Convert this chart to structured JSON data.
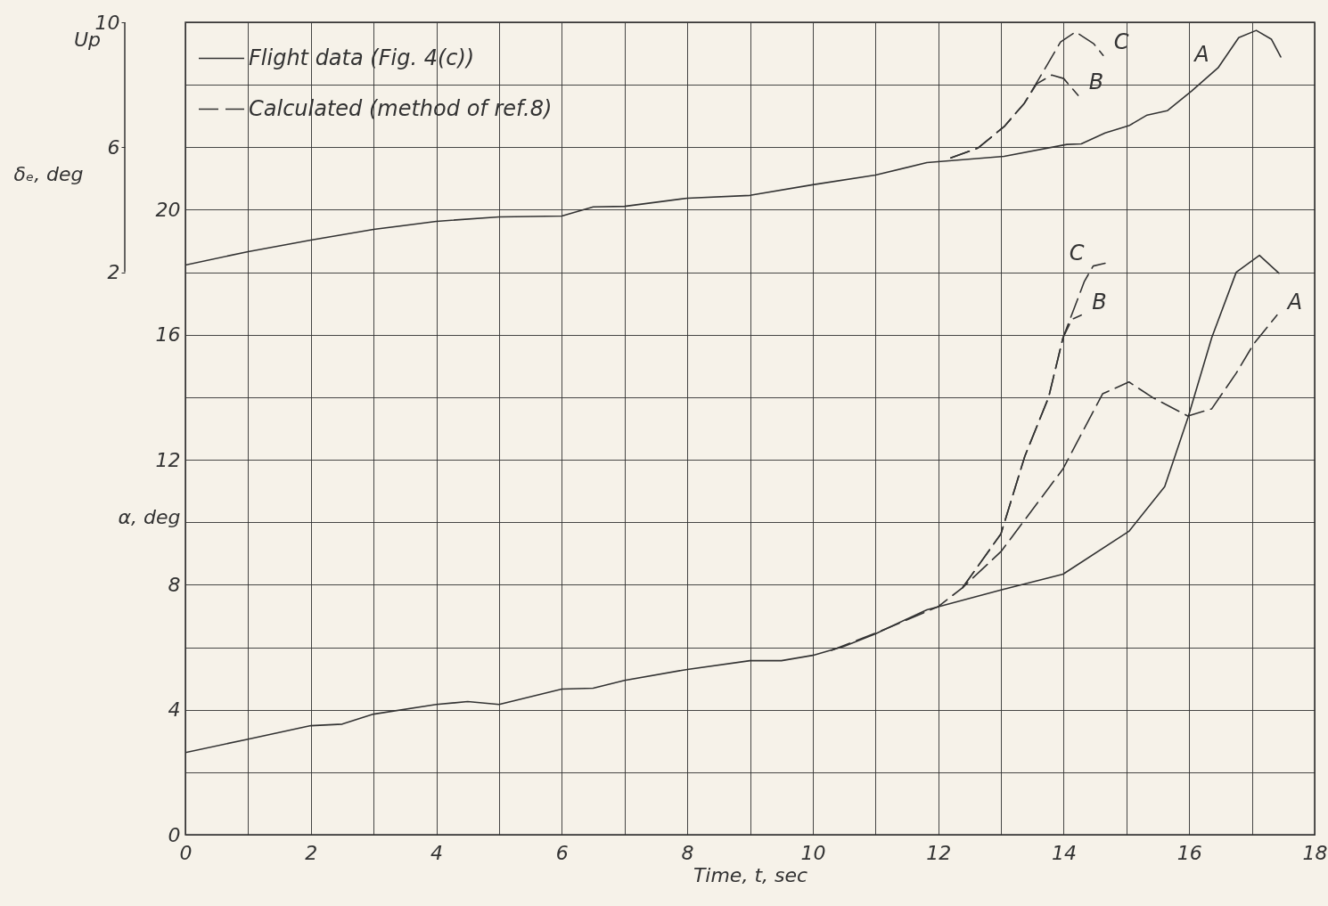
{
  "chart_data": {
    "type": "line",
    "xlabel": "Time, t, sec",
    "ylabel": "α, deg",
    "y2label": "δₑ, deg",
    "xlim": [
      0,
      18
    ],
    "xticks": [
      0,
      {
        "value": 1,
        "label": null
      },
      2,
      {
        "value": 3,
        "label": null
      },
      4,
      {
        "value": 5,
        "label": null
      },
      6,
      {
        "value": 7,
        "label": null
      },
      8,
      {
        "value": 9,
        "label": null
      },
      10,
      {
        "value": 11,
        "label": null
      },
      12,
      {
        "value": 13,
        "label": null
      },
      14,
      {
        "value": 15,
        "label": null
      },
      16,
      {
        "value": 17,
        "label": null
      },
      18
    ],
    "ylim": [
      0,
      26
    ],
    "yticks": [
      0,
      {
        "value": 2,
        "label": null
      },
      4,
      {
        "value": 6,
        "label": null
      },
      8,
      {
        "value": 10,
        "label": null
      },
      12,
      {
        "value": 14,
        "label": null
      },
      16,
      {
        "value": 18,
        "label": null
      },
      20,
      {
        "value": 22,
        "label": null
      },
      {
        "value": 24,
        "label": null
      },
      {
        "value": 26,
        "label": null
      }
    ],
    "y2lim": [
      -16,
      10
    ],
    "y2ticks": [
      2,
      6,
      10
    ],
    "grid": true,
    "legend": "top left",
    "series": [
      {
        "name": "Flight data (Fig. 4(c))",
        "color": "#333333",
        "line_style": "solid",
        "axis": "y2",
        "x": [
          0,
          1,
          2,
          3,
          4,
          5,
          6,
          6.5,
          7,
          8,
          9,
          10,
          11,
          11.82,
          13.05,
          14.05,
          14.28,
          14.66,
          15.04,
          15.33,
          15.65,
          16.04,
          16.46,
          16.79,
          17.07,
          17.31,
          17.46
        ],
        "values": [
          2.23,
          2.66,
          3.03,
          3.37,
          3.63,
          3.77,
          3.8,
          4.09,
          4.11,
          4.37,
          4.46,
          4.8,
          5.11,
          5.51,
          5.71,
          6.09,
          6.11,
          6.46,
          6.69,
          7.03,
          7.17,
          7.8,
          8.54,
          9.51,
          9.74,
          9.46,
          8.89
        ]
      },
      {
        "name": "Calculated (method of ref.8)",
        "color": "#333333",
        "line_style": "dashed",
        "axis": "y2",
        "x": [
          12.2,
          12.63,
          13.05,
          13.37,
          13.6,
          13.95,
          14.19,
          14.48,
          14.63
        ],
        "values": [
          5.66,
          5.97,
          6.66,
          7.4,
          8.17,
          9.37,
          9.69,
          9.31,
          8.94
        ]
      },
      {
        "color": "#333333",
        "line_style": "dashed",
        "axis": "y2",
        "x": [
          12.2,
          12.63,
          13.05,
          13.37,
          13.57,
          13.81,
          14.0,
          14.23
        ],
        "values": [
          5.66,
          5.97,
          6.66,
          7.4,
          8.03,
          8.31,
          8.2,
          7.66
        ]
      },
      {
        "color": "#333333",
        "line_style": "solid",
        "x": [
          0,
          1,
          2,
          2.5,
          3,
          4,
          4.5,
          5,
          6,
          6.5,
          7,
          8,
          9,
          9.5,
          10,
          10.5,
          11,
          11.82,
          13.0,
          13.99,
          15.04,
          15.61,
          15.98,
          16.36,
          16.75,
          17.12,
          17.43
        ],
        "values": [
          2.63,
          3.06,
          3.49,
          3.54,
          3.86,
          4.17,
          4.26,
          4.17,
          4.66,
          4.69,
          4.94,
          5.29,
          5.57,
          5.57,
          5.74,
          6.03,
          6.43,
          7.2,
          7.83,
          8.34,
          9.71,
          11.14,
          13.34,
          15.91,
          18.0,
          18.54,
          17.97
        ]
      },
      {
        "color": "#333333",
        "line_style": "dashed",
        "x": [
          10.3,
          11,
          12,
          12.39,
          13.0,
          13.99,
          14.62,
          15.04,
          15.41,
          15.98,
          16.36,
          16.75,
          17.03,
          17.4
        ],
        "values": [
          5.9,
          6.45,
          7.3,
          7.91,
          9.06,
          11.71,
          14.11,
          14.49,
          14.0,
          13.4,
          13.63,
          14.77,
          15.71,
          16.63
        ]
      },
      {
        "color": "#333333",
        "line_style": "dashed",
        "x": [
          12.39,
          13.0,
          13.38,
          13.76,
          13.99,
          14.13,
          14.28
        ],
        "values": [
          7.91,
          9.63,
          12.11,
          14.0,
          15.91,
          16.49,
          16.63
        ]
      },
      {
        "color": "#333333",
        "line_style": "dashed",
        "x": [
          12.39,
          13.0,
          13.38,
          13.76,
          13.99,
          14.33,
          14.47,
          14.66
        ],
        "values": [
          7.91,
          9.63,
          12.11,
          14.0,
          15.91,
          17.71,
          18.2,
          18.29
        ]
      }
    ],
    "annotations": [
      "Up",
      {
        "text": "C",
        "x": 14.63,
        "y": 24.94
      },
      {
        "text": "B",
        "x": 14.23,
        "y": 23.66
      },
      {
        "text": "A",
        "x": 16.46,
        "y": 24.54
      },
      {
        "text": "C",
        "x": 14.47,
        "y": 18.2
      },
      {
        "text": "B",
        "x": 14.28,
        "y": 16.63
      },
      {
        "text": "A",
        "x": 17.4,
        "y": 16.63
      }
    ]
  }
}
